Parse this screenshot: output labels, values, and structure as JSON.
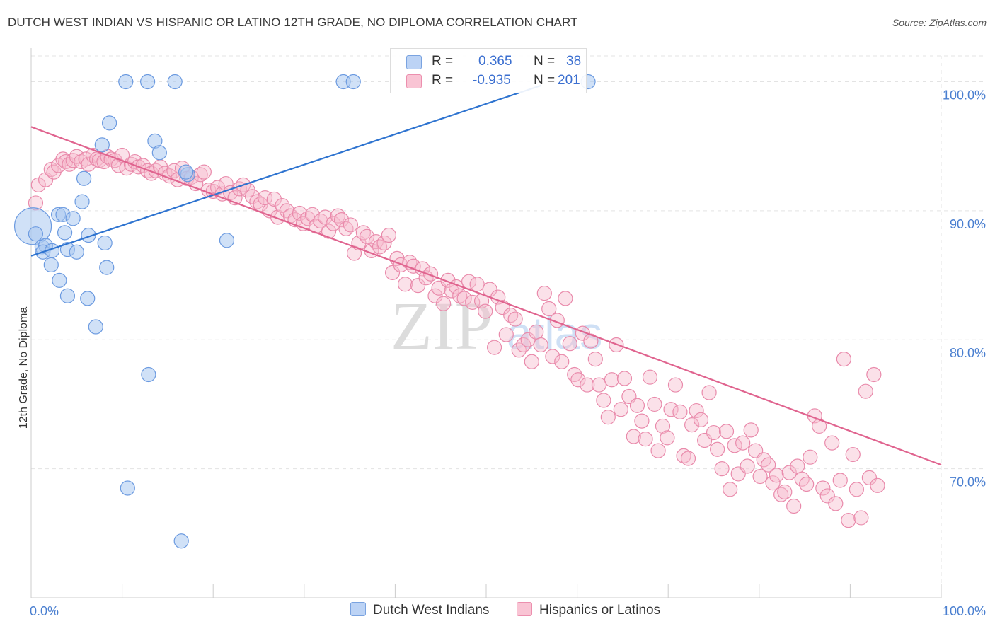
{
  "header": {
    "title": "DUTCH WEST INDIAN VS HISPANIC OR LATINO 12TH GRADE, NO DIPLOMA CORRELATION CHART",
    "source": "Source: ZipAtlas.com"
  },
  "watermark": {
    "zip": "ZIP",
    "atlas": "atlas"
  },
  "legend": {
    "r_label": "R =",
    "n_label": "N =",
    "rows": [
      {
        "r": "0.365",
        "n": "38",
        "fill": "#bcd3f5",
        "stroke": "#7aa3e0"
      },
      {
        "r": "-0.935",
        "n": "201",
        "fill": "#f9c4d4",
        "stroke": "#ec8fae"
      }
    ]
  },
  "colors": {
    "blue_fill": "#a9c8f0",
    "blue_stroke": "#6b9ae0",
    "blue_line": "#2f74d0",
    "pink_fill": "#f7bccf",
    "pink_stroke": "#e98aab",
    "pink_line": "#e0648f",
    "grid": "#e3e3e3",
    "tick_label": "#4a7fd0"
  },
  "chart_data": {
    "type": "scatter",
    "title": "DUTCH WEST INDIAN VS HISPANIC OR LATINO 12TH GRADE, NO DIPLOMA CORRELATION CHART",
    "xlabel": "",
    "ylabel": "12th Grade, No Diploma",
    "xlim": [
      0,
      100
    ],
    "ylim": [
      60,
      102
    ],
    "x_tick_labels": [
      "0.0%",
      "100.0%"
    ],
    "y_ticks": [
      70,
      80,
      90,
      100
    ],
    "y_tick_labels": [
      "70.0%",
      "80.0%",
      "90.0%",
      "100.0%"
    ],
    "grid": true,
    "legend_position": "bottom",
    "series": [
      {
        "name": "Dutch West Indians",
        "r": 0.365,
        "n": 38,
        "trend": {
          "x": [
            0,
            56
          ],
          "y": [
            86.5,
            99.7
          ]
        },
        "points": [
          [
            0.2,
            88.8,
            26
          ],
          [
            0.5,
            88.2,
            10
          ],
          [
            1.2,
            87.2,
            10
          ],
          [
            1.6,
            87.3,
            10
          ],
          [
            1.3,
            86.8,
            10
          ],
          [
            2.3,
            86.9,
            10
          ],
          [
            2.2,
            85.8,
            10
          ],
          [
            3.0,
            89.7,
            10
          ],
          [
            3.5,
            89.7,
            10
          ],
          [
            3.7,
            88.3,
            10
          ],
          [
            4.6,
            89.4,
            10
          ],
          [
            3.1,
            84.6,
            10
          ],
          [
            4.0,
            83.4,
            10
          ],
          [
            4.0,
            87.0,
            10
          ],
          [
            5.0,
            86.8,
            10
          ],
          [
            5.6,
            90.7,
            10
          ],
          [
            6.3,
            88.1,
            10
          ],
          [
            6.2,
            83.2,
            10
          ],
          [
            7.1,
            81.0,
            10
          ],
          [
            7.8,
            95.1,
            10
          ],
          [
            8.1,
            87.5,
            10
          ],
          [
            8.3,
            85.6,
            10
          ],
          [
            8.6,
            96.8,
            10
          ],
          [
            10.4,
            100.0,
            10
          ],
          [
            12.8,
            100.0,
            10
          ],
          [
            13.6,
            95.4,
            10
          ],
          [
            14.1,
            94.5,
            10
          ],
          [
            15.8,
            100.0,
            10
          ],
          [
            17.2,
            92.8,
            10
          ],
          [
            21.5,
            87.7,
            10
          ],
          [
            34.3,
            100.0,
            10
          ],
          [
            35.4,
            100.0,
            10
          ],
          [
            61.2,
            100.0,
            10
          ],
          [
            5.8,
            92.5,
            10
          ],
          [
            12.9,
            77.3,
            10
          ],
          [
            10.6,
            68.5,
            10
          ],
          [
            16.5,
            64.4,
            10
          ],
          [
            17.0,
            93.0,
            10
          ]
        ]
      },
      {
        "name": "Hispanics or Latinos",
        "r": -0.935,
        "n": 201,
        "trend": {
          "x": [
            0,
            100
          ],
          "y": [
            96.5,
            70.3
          ]
        },
        "points": [
          [
            0.5,
            90.6
          ],
          [
            0.8,
            92.0
          ],
          [
            1.6,
            92.4
          ],
          [
            2.2,
            93.2
          ],
          [
            2.5,
            93.0
          ],
          [
            3.0,
            93.5
          ],
          [
            3.5,
            94.0
          ],
          [
            3.8,
            93.8
          ],
          [
            4.2,
            93.6
          ],
          [
            4.6,
            93.9
          ],
          [
            5.0,
            94.2
          ],
          [
            5.5,
            93.8
          ],
          [
            6.0,
            94.0
          ],
          [
            6.3,
            93.6
          ],
          [
            6.8,
            94.3
          ],
          [
            7.2,
            94.0
          ],
          [
            7.5,
            93.9
          ],
          [
            8.0,
            93.8
          ],
          [
            8.4,
            94.2
          ],
          [
            8.8,
            94.0
          ],
          [
            9.2,
            93.9
          ],
          [
            9.6,
            93.5
          ],
          [
            10.0,
            94.3
          ],
          [
            10.5,
            93.3
          ],
          [
            11.0,
            93.6
          ],
          [
            11.4,
            93.8
          ],
          [
            11.8,
            93.4
          ],
          [
            12.3,
            93.5
          ],
          [
            12.8,
            93.1
          ],
          [
            13.2,
            92.9
          ],
          [
            13.7,
            93.1
          ],
          [
            14.2,
            93.4
          ],
          [
            14.7,
            92.9
          ],
          [
            15.2,
            92.7
          ],
          [
            15.7,
            93.1
          ],
          [
            16.1,
            92.4
          ],
          [
            16.6,
            93.3
          ],
          [
            17.1,
            92.5
          ],
          [
            17.6,
            92.6
          ],
          [
            18.1,
            92.1
          ],
          [
            18.6,
            92.8
          ],
          [
            19.0,
            93.0
          ],
          [
            19.5,
            91.6
          ],
          [
            20.0,
            91.5
          ],
          [
            20.5,
            91.8
          ],
          [
            21.0,
            91.3
          ],
          [
            21.4,
            92.1
          ],
          [
            21.9,
            91.4
          ],
          [
            22.4,
            91.0
          ],
          [
            22.9,
            91.7
          ],
          [
            23.3,
            92.0
          ],
          [
            23.8,
            91.6
          ],
          [
            24.3,
            91.1
          ],
          [
            24.8,
            90.7
          ],
          [
            25.2,
            90.5
          ],
          [
            25.7,
            91.0
          ],
          [
            26.2,
            90.0
          ],
          [
            26.7,
            90.9
          ],
          [
            27.1,
            89.5
          ],
          [
            27.6,
            90.4
          ],
          [
            28.1,
            90.0
          ],
          [
            28.5,
            89.6
          ],
          [
            29.0,
            89.3
          ],
          [
            29.5,
            89.8
          ],
          [
            29.9,
            89.0
          ],
          [
            30.4,
            89.4
          ],
          [
            30.9,
            89.7
          ],
          [
            31.3,
            88.8
          ],
          [
            31.8,
            89.2
          ],
          [
            32.3,
            89.5
          ],
          [
            32.7,
            88.4
          ],
          [
            33.2,
            89.0
          ],
          [
            33.7,
            89.6
          ],
          [
            34.1,
            89.3
          ],
          [
            34.6,
            88.6
          ],
          [
            35.1,
            88.9
          ],
          [
            35.5,
            86.7
          ],
          [
            36.0,
            87.5
          ],
          [
            36.5,
            88.3
          ],
          [
            36.9,
            88.0
          ],
          [
            37.4,
            86.9
          ],
          [
            37.9,
            87.6
          ],
          [
            38.3,
            87.2
          ],
          [
            38.8,
            87.5
          ],
          [
            39.3,
            88.1
          ],
          [
            39.7,
            85.2
          ],
          [
            40.2,
            86.3
          ],
          [
            40.6,
            85.8
          ],
          [
            41.1,
            84.3
          ],
          [
            41.6,
            86.0
          ],
          [
            42.0,
            85.7
          ],
          [
            42.5,
            84.2
          ],
          [
            43.0,
            85.5
          ],
          [
            43.4,
            84.8
          ],
          [
            43.9,
            85.1
          ],
          [
            44.4,
            83.4
          ],
          [
            44.8,
            84.0
          ],
          [
            45.3,
            82.8
          ],
          [
            45.8,
            84.6
          ],
          [
            46.2,
            83.8
          ],
          [
            46.7,
            84.1
          ],
          [
            47.1,
            83.4
          ],
          [
            47.6,
            83.2
          ],
          [
            48.1,
            84.5
          ],
          [
            48.5,
            82.9
          ],
          [
            49.0,
            84.3
          ],
          [
            49.5,
            83.0
          ],
          [
            49.9,
            82.2
          ],
          [
            50.4,
            83.9
          ],
          [
            50.9,
            79.4
          ],
          [
            51.3,
            83.3
          ],
          [
            51.8,
            82.5
          ],
          [
            52.2,
            80.4
          ],
          [
            52.7,
            81.9
          ],
          [
            53.2,
            81.6
          ],
          [
            53.6,
            79.2
          ],
          [
            54.1,
            79.6
          ],
          [
            54.6,
            80.0
          ],
          [
            55.0,
            78.3
          ],
          [
            55.5,
            80.6
          ],
          [
            56.0,
            79.6
          ],
          [
            56.4,
            83.6
          ],
          [
            56.9,
            82.4
          ],
          [
            57.3,
            78.7
          ],
          [
            57.8,
            81.5
          ],
          [
            58.3,
            78.3
          ],
          [
            58.7,
            83.2
          ],
          [
            59.2,
            79.7
          ],
          [
            59.7,
            77.3
          ],
          [
            60.1,
            76.9
          ],
          [
            60.6,
            80.5
          ],
          [
            61.1,
            76.5
          ],
          [
            61.5,
            79.9
          ],
          [
            62.0,
            78.5
          ],
          [
            62.4,
            76.5
          ],
          [
            62.9,
            75.3
          ],
          [
            63.4,
            74.0
          ],
          [
            63.8,
            76.9
          ],
          [
            64.3,
            79.6
          ],
          [
            64.8,
            74.6
          ],
          [
            65.2,
            77.0
          ],
          [
            65.7,
            75.6
          ],
          [
            66.2,
            72.5
          ],
          [
            66.6,
            74.9
          ],
          [
            67.1,
            73.7
          ],
          [
            67.5,
            72.3
          ],
          [
            68.0,
            77.1
          ],
          [
            68.5,
            75.0
          ],
          [
            68.9,
            71.4
          ],
          [
            69.4,
            73.3
          ],
          [
            69.9,
            72.4
          ],
          [
            70.3,
            74.6
          ],
          [
            70.8,
            76.5
          ],
          [
            71.3,
            74.4
          ],
          [
            71.7,
            71.0
          ],
          [
            72.2,
            70.8
          ],
          [
            72.6,
            73.4
          ],
          [
            73.1,
            74.5
          ],
          [
            73.6,
            73.8
          ],
          [
            74.0,
            72.2
          ],
          [
            74.5,
            75.9
          ],
          [
            75.0,
            72.8
          ],
          [
            75.4,
            71.5
          ],
          [
            75.9,
            70.0
          ],
          [
            76.4,
            72.9
          ],
          [
            76.8,
            68.4
          ],
          [
            77.3,
            71.8
          ],
          [
            77.7,
            69.6
          ],
          [
            78.2,
            72.0
          ],
          [
            78.7,
            70.2
          ],
          [
            79.1,
            73.0
          ],
          [
            79.6,
            71.4
          ],
          [
            80.1,
            69.4
          ],
          [
            80.5,
            70.7
          ],
          [
            81.0,
            70.3
          ],
          [
            81.5,
            68.9
          ],
          [
            81.9,
            69.5
          ],
          [
            82.4,
            68.0
          ],
          [
            82.8,
            68.2
          ],
          [
            83.3,
            69.7
          ],
          [
            83.8,
            67.1
          ],
          [
            84.2,
            70.2
          ],
          [
            84.7,
            69.2
          ],
          [
            85.2,
            68.8
          ],
          [
            85.6,
            70.9
          ],
          [
            86.1,
            74.1
          ],
          [
            86.6,
            73.3
          ],
          [
            87.0,
            68.5
          ],
          [
            87.5,
            67.9
          ],
          [
            88.0,
            72.0
          ],
          [
            88.4,
            67.3
          ],
          [
            88.9,
            69.1
          ],
          [
            89.3,
            78.5
          ],
          [
            89.8,
            66.0
          ],
          [
            90.3,
            71.1
          ],
          [
            90.7,
            68.4
          ],
          [
            91.2,
            66.2
          ],
          [
            91.7,
            76.0
          ],
          [
            92.1,
            69.3
          ],
          [
            92.6,
            77.3
          ],
          [
            93.0,
            68.7
          ]
        ]
      }
    ]
  }
}
